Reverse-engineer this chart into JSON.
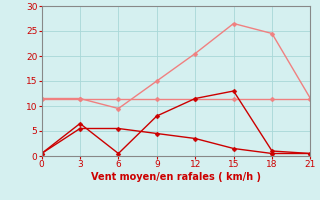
{
  "x": [
    0,
    3,
    6,
    9,
    12,
    15,
    18,
    21
  ],
  "line_gusts": [
    11.5,
    11.5,
    9.5,
    15.0,
    20.5,
    26.5,
    24.5,
    11.5
  ],
  "line_flat": [
    11.5,
    11.5,
    11.5,
    11.5,
    11.5,
    11.5,
    11.5,
    11.5
  ],
  "line_wind": [
    0.5,
    6.5,
    0.5,
    8.0,
    11.5,
    13.0,
    1.0,
    0.5
  ],
  "line_freq": [
    0.5,
    5.5,
    5.5,
    4.5,
    3.5,
    1.5,
    0.5,
    0.5
  ],
  "color_gusts": "#f08080",
  "color_flat": "#f08080",
  "color_wind": "#cc0000",
  "color_freq": "#cc0000",
  "markersize": 2.5,
  "xlabel": "Vent moyen/en rafales ( km/h )",
  "ylim": [
    0,
    30
  ],
  "xlim": [
    0,
    21
  ],
  "xticks": [
    0,
    3,
    6,
    9,
    12,
    15,
    18,
    21
  ],
  "yticks": [
    0,
    5,
    10,
    15,
    20,
    25,
    30
  ],
  "bg_color": "#d5f0f0",
  "grid_color": "#a8d8d8",
  "label_fontsize": 7,
  "tick_fontsize": 6.5,
  "xlabel_color": "#cc0000",
  "tick_color": "#cc0000",
  "spine_color": "#888888"
}
